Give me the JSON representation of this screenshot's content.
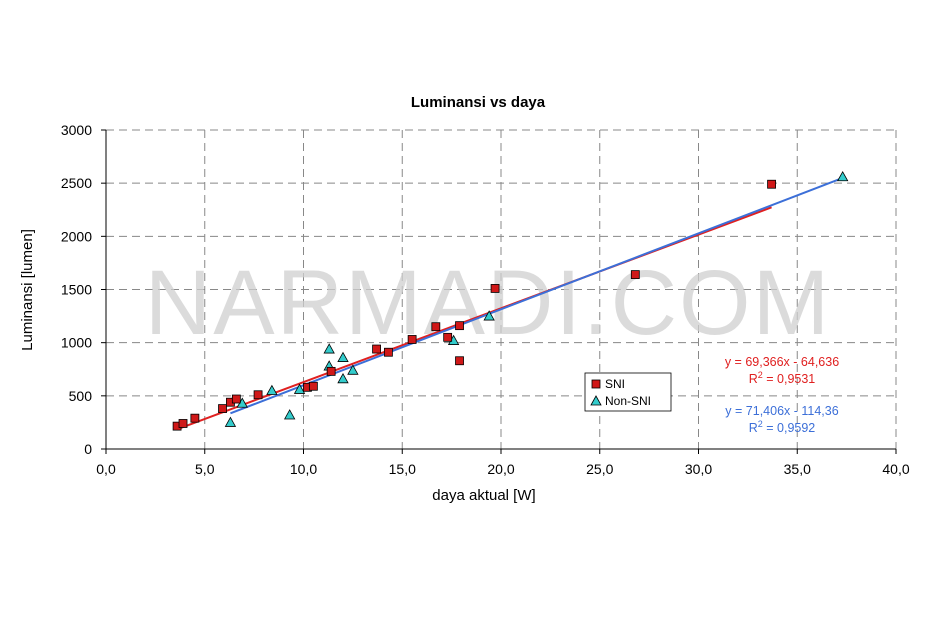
{
  "watermark": "NARMADI.COM",
  "colors": {
    "sni": "#e02020",
    "non_sni": "#3c6fd8",
    "sni_marker": "#d01818",
    "non_sni_marker": "#33cccc",
    "grid": "#888888"
  },
  "chart_data": {
    "type": "scatter",
    "title": "Luminansi vs daya",
    "xlabel": "daya aktual [W]",
    "ylabel": "Luminansi [lumen]",
    "xlim": [
      0,
      40
    ],
    "ylim": [
      0,
      3000
    ],
    "x_ticks": [
      0,
      5,
      10,
      15,
      20,
      25,
      30,
      35,
      40
    ],
    "x_tick_labels": [
      "0,0",
      "5,0",
      "10,0",
      "15,0",
      "20,0",
      "25,0",
      "30,0",
      "35,0",
      "40,0"
    ],
    "y_ticks": [
      0,
      500,
      1000,
      1500,
      2000,
      2500,
      3000
    ],
    "y_tick_labels": [
      "0",
      "500",
      "1000",
      "1500",
      "2000",
      "2500",
      "3000"
    ],
    "grid": true,
    "legend_position": "right",
    "series": [
      {
        "name": "SNI",
        "marker": "square",
        "points": [
          [
            3.6,
            215
          ],
          [
            3.9,
            240
          ],
          [
            4.5,
            290
          ],
          [
            5.9,
            380
          ],
          [
            6.3,
            440
          ],
          [
            6.6,
            470
          ],
          [
            7.7,
            510
          ],
          [
            10.2,
            580
          ],
          [
            10.5,
            590
          ],
          [
            11.4,
            730
          ],
          [
            13.7,
            940
          ],
          [
            14.3,
            910
          ],
          [
            15.5,
            1030
          ],
          [
            16.7,
            1150
          ],
          [
            17.3,
            1050
          ],
          [
            17.9,
            830
          ],
          [
            17.9,
            1160
          ],
          [
            19.7,
            1510
          ],
          [
            26.8,
            1640
          ],
          [
            33.7,
            2490
          ]
        ],
        "trendline": {
          "slope": 69.366,
          "intercept": -64.636,
          "x_range": [
            3.6,
            33.7
          ]
        },
        "equation": "y = 69,366x - 64,636",
        "r2_prefix": "R",
        "r2_sup": "2",
        "r2_value": " = 0,9531"
      },
      {
        "name": "Non-SNI",
        "marker": "triangle",
        "points": [
          [
            6.3,
            250
          ],
          [
            6.9,
            430
          ],
          [
            8.4,
            550
          ],
          [
            9.3,
            320
          ],
          [
            9.8,
            560
          ],
          [
            11.3,
            780
          ],
          [
            11.3,
            940
          ],
          [
            12.0,
            660
          ],
          [
            12.0,
            860
          ],
          [
            12.5,
            740
          ],
          [
            17.6,
            1020
          ],
          [
            19.4,
            1250
          ],
          [
            37.3,
            2560
          ]
        ],
        "trendline": {
          "slope": 71.406,
          "intercept": -114.36,
          "x_range": [
            6.3,
            37.3
          ]
        },
        "equation": "y = 71,406x - 114,36",
        "r2_prefix": "R",
        "r2_sup": "2",
        "r2_value": " = 0,9592"
      }
    ]
  }
}
